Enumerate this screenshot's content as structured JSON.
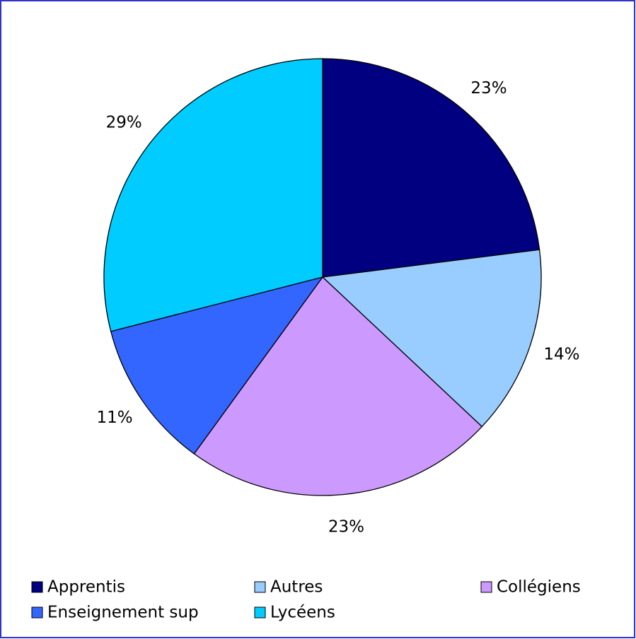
{
  "chart_data": {
    "type": "pie",
    "categories": [
      "Apprentis",
      "Autres",
      "Collégiens",
      "Enseignement sup",
      "Lycéens"
    ],
    "values": [
      23,
      14,
      23,
      11,
      29
    ],
    "value_labels": [
      "23%",
      "14%",
      "23%",
      "11%",
      "29%"
    ],
    "colors": [
      "#000080",
      "#99ccff",
      "#cc99ff",
      "#3366ff",
      "#00ccff"
    ],
    "legend": "bottom"
  }
}
